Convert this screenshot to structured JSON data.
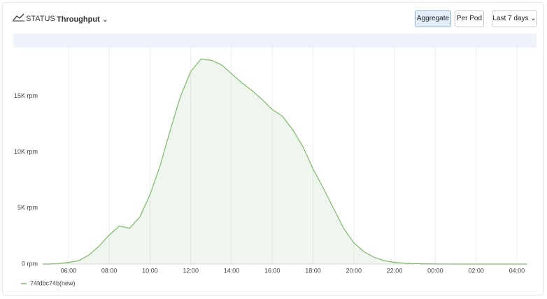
{
  "ui": {
    "section": "STATUS",
    "metric": "Throughput",
    "buttons": [
      "Aggregate",
      "Per Pod"
    ],
    "range": "Last 7 days"
  },
  "chart_data": {
    "type": "area",
    "x": [
      4.75,
      5,
      5.5,
      6,
      6.5,
      7,
      7.5,
      8,
      8.5,
      9,
      9.5,
      10,
      10.5,
      11,
      11.5,
      12,
      12.5,
      13,
      13.5,
      14,
      14.5,
      15,
      15.5,
      16,
      16.5,
      17,
      17.5,
      18,
      18.5,
      19,
      19.5,
      20,
      20.5,
      21,
      21.5,
      22,
      22.5,
      23,
      24,
      25,
      26,
      27,
      28,
      28.5
    ],
    "series": [
      {
        "name": "74fdbc74b(new)",
        "color": "#7cb96a",
        "values": [
          0,
          0,
          50,
          150,
          300,
          800,
          1600,
          2600,
          3400,
          3200,
          4200,
          6200,
          8800,
          12000,
          15000,
          17200,
          18300,
          18200,
          17800,
          17000,
          16200,
          15500,
          14700,
          13800,
          13200,
          12000,
          10500,
          8500,
          6800,
          5000,
          3200,
          1900,
          1100,
          600,
          300,
          150,
          80,
          40,
          10,
          0,
          0,
          0,
          0,
          0
        ]
      }
    ],
    "xlim": [
      4.7,
      28.45
    ],
    "ylim": [
      0,
      19400
    ],
    "xticks": [
      {
        "value": 6,
        "label": "06:00"
      },
      {
        "value": 8,
        "label": "08:00"
      },
      {
        "value": 10,
        "label": "10:00"
      },
      {
        "value": 12,
        "label": "12:00"
      },
      {
        "value": 14,
        "label": "14:00"
      },
      {
        "value": 16,
        "label": "16:00"
      },
      {
        "value": 18,
        "label": "18:00"
      },
      {
        "value": 20,
        "label": "20:00"
      },
      {
        "value": 22,
        "label": "22:00"
      },
      {
        "value": 24,
        "label": "00:00"
      },
      {
        "value": 26,
        "label": "02:00"
      },
      {
        "value": 28,
        "label": "04:00"
      }
    ],
    "yticks": [
      {
        "value": 0,
        "label": "0 rpm"
      },
      {
        "value": 5000,
        "label": "5K rpm"
      },
      {
        "value": 10000,
        "label": "10K rpm"
      },
      {
        "value": 15000,
        "label": "15K rpm"
      }
    ],
    "grid": "x"
  }
}
